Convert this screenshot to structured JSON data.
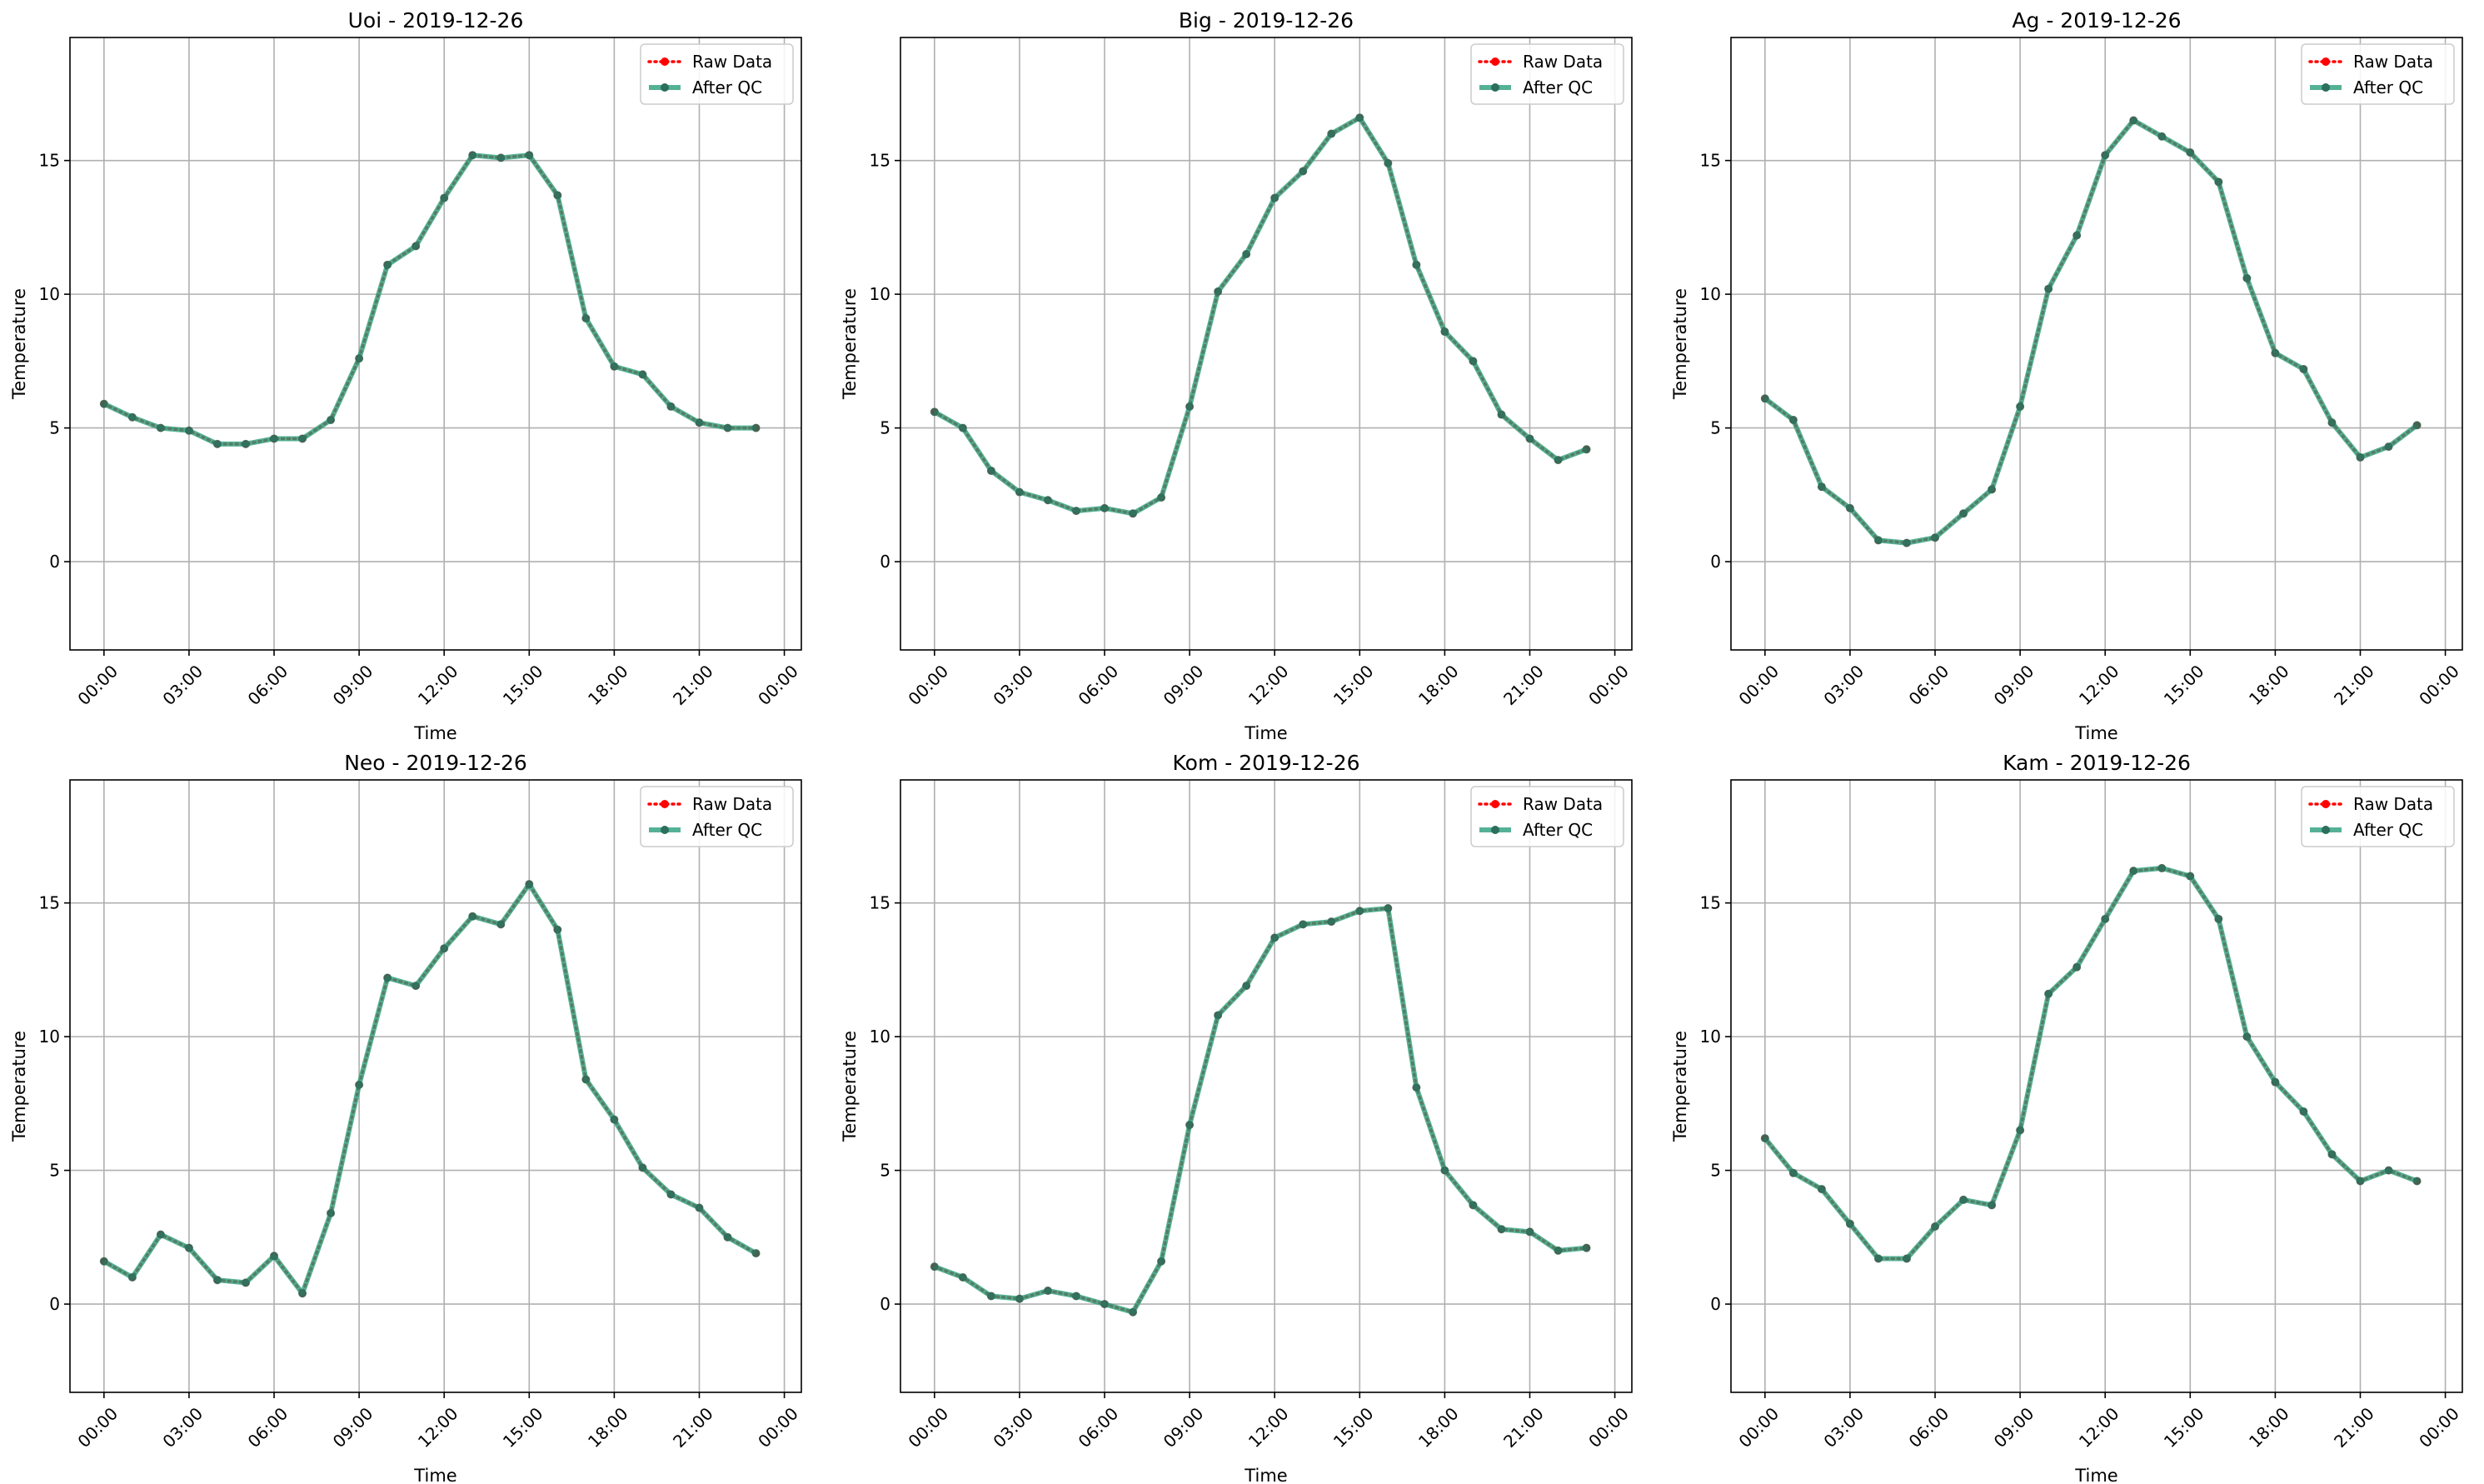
{
  "chart_data": [
    {
      "type": "line",
      "title": "Uoi - 2019-12-26",
      "xlabel": "Time",
      "ylabel": "Temperature",
      "x_tick_labels": [
        "00:00",
        "03:00",
        "06:00",
        "09:00",
        "12:00",
        "15:00",
        "18:00",
        "21:00",
        "00:00"
      ],
      "y_ticks": [
        0,
        5,
        10,
        15
      ],
      "ylim": [
        -3.3,
        19.6
      ],
      "xlim_hours": [
        -1.2,
        24.6
      ],
      "x_hours": [
        0,
        1,
        2,
        3,
        4,
        5,
        6,
        7,
        8,
        9,
        10,
        11,
        12,
        13,
        14,
        15,
        16,
        17,
        18,
        19,
        20,
        21,
        22,
        23
      ],
      "grid": true,
      "legend_position": "upper right",
      "series": [
        {
          "name": "Raw Data",
          "color": "#ff0000",
          "style": "dotted",
          "values": [
            5.9,
            5.4,
            5.0,
            4.9,
            4.4,
            4.4,
            4.6,
            4.6,
            5.3,
            7.6,
            11.1,
            11.8,
            13.6,
            15.2,
            15.1,
            15.2,
            13.7,
            9.1,
            7.3,
            7.0,
            5.8,
            5.2,
            5.0,
            5.0
          ]
        },
        {
          "name": "After QC",
          "color": "#2a9d7c",
          "style": "solid",
          "values": [
            5.9,
            5.4,
            5.0,
            4.9,
            4.4,
            4.4,
            4.6,
            4.6,
            5.3,
            7.6,
            11.1,
            11.8,
            13.6,
            15.2,
            15.1,
            15.2,
            13.7,
            9.1,
            7.3,
            7.0,
            5.8,
            5.2,
            5.0,
            5.0
          ]
        }
      ]
    },
    {
      "type": "line",
      "title": "Big - 2019-12-26",
      "xlabel": "Time",
      "ylabel": "Temperature",
      "x_tick_labels": [
        "00:00",
        "03:00",
        "06:00",
        "09:00",
        "12:00",
        "15:00",
        "18:00",
        "21:00",
        "00:00"
      ],
      "y_ticks": [
        0,
        5,
        10,
        15
      ],
      "ylim": [
        -3.3,
        19.6
      ],
      "xlim_hours": [
        -1.2,
        24.6
      ],
      "x_hours": [
        0,
        1,
        2,
        3,
        4,
        5,
        6,
        7,
        8,
        9,
        10,
        11,
        12,
        13,
        14,
        15,
        16,
        17,
        18,
        19,
        20,
        21,
        22,
        23
      ],
      "grid": true,
      "legend_position": "upper right",
      "series": [
        {
          "name": "Raw Data",
          "color": "#ff0000",
          "style": "dotted",
          "values": [
            5.6,
            5.0,
            3.4,
            2.6,
            2.3,
            1.9,
            2.0,
            1.8,
            2.4,
            5.8,
            10.1,
            11.5,
            13.6,
            14.6,
            16.0,
            16.6,
            14.9,
            11.1,
            8.6,
            7.5,
            5.5,
            4.6,
            3.8,
            4.2
          ]
        },
        {
          "name": "After QC",
          "color": "#2a9d7c",
          "style": "solid",
          "values": [
            5.6,
            5.0,
            3.4,
            2.6,
            2.3,
            1.9,
            2.0,
            1.8,
            2.4,
            5.8,
            10.1,
            11.5,
            13.6,
            14.6,
            16.0,
            16.6,
            14.9,
            11.1,
            8.6,
            7.5,
            5.5,
            4.6,
            3.8,
            4.2
          ]
        }
      ]
    },
    {
      "type": "line",
      "title": "Ag - 2019-12-26",
      "xlabel": "Time",
      "ylabel": "Temperature",
      "x_tick_labels": [
        "00:00",
        "03:00",
        "06:00",
        "09:00",
        "12:00",
        "15:00",
        "18:00",
        "21:00",
        "00:00"
      ],
      "y_ticks": [
        0,
        5,
        10,
        15
      ],
      "ylim": [
        -3.3,
        19.6
      ],
      "xlim_hours": [
        -1.2,
        24.6
      ],
      "x_hours": [
        0,
        1,
        2,
        3,
        4,
        5,
        6,
        7,
        8,
        9,
        10,
        11,
        12,
        13,
        14,
        15,
        16,
        17,
        18,
        19,
        20,
        21,
        22,
        23
      ],
      "grid": true,
      "legend_position": "upper right",
      "series": [
        {
          "name": "Raw Data",
          "color": "#ff0000",
          "style": "dotted",
          "values": [
            6.1,
            5.3,
            2.8,
            2.0,
            0.8,
            0.7,
            0.9,
            1.8,
            2.7,
            5.8,
            10.2,
            12.2,
            15.2,
            16.5,
            15.9,
            15.3,
            14.2,
            10.6,
            7.8,
            7.2,
            5.2,
            3.9,
            4.3,
            5.1
          ]
        },
        {
          "name": "After QC",
          "color": "#2a9d7c",
          "style": "solid",
          "values": [
            6.1,
            5.3,
            2.8,
            2.0,
            0.8,
            0.7,
            0.9,
            1.8,
            2.7,
            5.8,
            10.2,
            12.2,
            15.2,
            16.5,
            15.9,
            15.3,
            14.2,
            10.6,
            7.8,
            7.2,
            5.2,
            3.9,
            4.3,
            5.1
          ]
        }
      ]
    },
    {
      "type": "line",
      "title": "Neo - 2019-12-26",
      "xlabel": "Time",
      "ylabel": "Temperature",
      "x_tick_labels": [
        "00:00",
        "03:00",
        "06:00",
        "09:00",
        "12:00",
        "15:00",
        "18:00",
        "21:00",
        "00:00"
      ],
      "y_ticks": [
        0,
        5,
        10,
        15
      ],
      "ylim": [
        -3.3,
        19.6
      ],
      "xlim_hours": [
        -1.2,
        24.6
      ],
      "x_hours": [
        0,
        1,
        2,
        3,
        4,
        5,
        6,
        7,
        8,
        9,
        10,
        11,
        12,
        13,
        14,
        15,
        16,
        17,
        18,
        19,
        20,
        21,
        22,
        23
      ],
      "grid": true,
      "legend_position": "upper right",
      "series": [
        {
          "name": "Raw Data",
          "color": "#ff0000",
          "style": "dotted",
          "values": [
            1.6,
            1.0,
            2.6,
            2.1,
            0.9,
            0.8,
            1.8,
            0.4,
            3.4,
            8.2,
            12.2,
            11.9,
            13.3,
            14.5,
            14.2,
            15.7,
            14.0,
            8.4,
            6.9,
            5.1,
            4.1,
            3.6,
            2.5,
            1.9
          ]
        },
        {
          "name": "After QC",
          "color": "#2a9d7c",
          "style": "solid",
          "values": [
            1.6,
            1.0,
            2.6,
            2.1,
            0.9,
            0.8,
            1.8,
            0.4,
            3.4,
            8.2,
            12.2,
            11.9,
            13.3,
            14.5,
            14.2,
            15.7,
            14.0,
            8.4,
            6.9,
            5.1,
            4.1,
            3.6,
            2.5,
            1.9
          ]
        }
      ]
    },
    {
      "type": "line",
      "title": "Kom - 2019-12-26",
      "xlabel": "Time",
      "ylabel": "Temperature",
      "x_tick_labels": [
        "00:00",
        "03:00",
        "06:00",
        "09:00",
        "12:00",
        "15:00",
        "18:00",
        "21:00",
        "00:00"
      ],
      "y_ticks": [
        0,
        5,
        10,
        15
      ],
      "ylim": [
        -3.3,
        19.6
      ],
      "xlim_hours": [
        -1.2,
        24.6
      ],
      "x_hours": [
        0,
        1,
        2,
        3,
        4,
        5,
        6,
        7,
        8,
        9,
        10,
        11,
        12,
        13,
        14,
        15,
        16,
        17,
        18,
        19,
        20,
        21,
        22,
        23
      ],
      "grid": true,
      "legend_position": "upper right",
      "series": [
        {
          "name": "Raw Data",
          "color": "#ff0000",
          "style": "dotted",
          "values": [
            1.4,
            1.0,
            0.3,
            0.2,
            0.5,
            0.3,
            0.0,
            -0.3,
            1.6,
            6.7,
            10.8,
            11.9,
            13.7,
            14.2,
            14.3,
            14.7,
            14.8,
            8.1,
            5.0,
            3.7,
            2.8,
            2.7,
            2.0,
            2.1
          ]
        },
        {
          "name": "After QC",
          "color": "#2a9d7c",
          "style": "solid",
          "values": [
            1.4,
            1.0,
            0.3,
            0.2,
            0.5,
            0.3,
            0.0,
            -0.3,
            1.6,
            6.7,
            10.8,
            11.9,
            13.7,
            14.2,
            14.3,
            14.7,
            14.8,
            8.1,
            5.0,
            3.7,
            2.8,
            2.7,
            2.0,
            2.1
          ]
        }
      ]
    },
    {
      "type": "line",
      "title": "Kam - 2019-12-26",
      "xlabel": "Time",
      "ylabel": "Temperature",
      "x_tick_labels": [
        "00:00",
        "03:00",
        "06:00",
        "09:00",
        "12:00",
        "15:00",
        "18:00",
        "21:00",
        "00:00"
      ],
      "y_ticks": [
        0,
        5,
        10,
        15
      ],
      "ylim": [
        -3.3,
        19.6
      ],
      "xlim_hours": [
        -1.2,
        24.6
      ],
      "x_hours": [
        0,
        1,
        2,
        3,
        4,
        5,
        6,
        7,
        8,
        9,
        10,
        11,
        12,
        13,
        14,
        15,
        16,
        17,
        18,
        19,
        20,
        21,
        22,
        23
      ],
      "grid": true,
      "legend_position": "upper right",
      "series": [
        {
          "name": "Raw Data",
          "color": "#ff0000",
          "style": "dotted",
          "values": [
            6.2,
            4.9,
            4.3,
            3.0,
            1.7,
            1.7,
            2.9,
            3.9,
            3.7,
            6.5,
            11.6,
            12.6,
            14.4,
            16.2,
            16.3,
            16.0,
            14.4,
            10.0,
            8.3,
            7.2,
            5.6,
            4.6,
            5.0,
            4.6
          ]
        },
        {
          "name": "After QC",
          "color": "#2a9d7c",
          "style": "solid",
          "values": [
            6.2,
            4.9,
            4.3,
            3.0,
            1.7,
            1.7,
            2.9,
            3.9,
            3.7,
            6.5,
            11.6,
            12.6,
            14.4,
            16.2,
            16.3,
            16.0,
            14.4,
            10.0,
            8.3,
            7.2,
            5.6,
            4.6,
            5.0,
            4.6
          ]
        }
      ]
    }
  ]
}
